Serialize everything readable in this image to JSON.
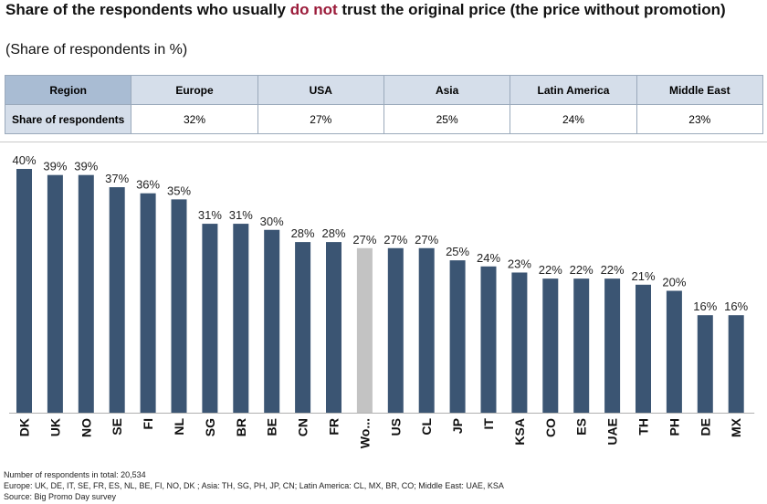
{
  "title": {
    "before": "Share of the respondents who usually ",
    "highlight": "do not",
    "after": " trust the original price (the price without promotion)"
  },
  "subtitle": "(Share of respondents in %)",
  "summary_table": {
    "header_label": "Region",
    "row_label": "Share of respondents",
    "columns": [
      {
        "region": "Europe",
        "value": "32%"
      },
      {
        "region": "USA",
        "value": "27%"
      },
      {
        "region": "Asia",
        "value": "25%"
      },
      {
        "region": "Latin America",
        "value": "24%"
      },
      {
        "region": "Middle East",
        "value": "23%"
      }
    ]
  },
  "chart_data": {
    "type": "bar",
    "categories": [
      "DK",
      "UK",
      "NO",
      "SE",
      "FI",
      "NL",
      "SG",
      "BR",
      "BE",
      "CN",
      "FR",
      "Wo...",
      "US",
      "CL",
      "JP",
      "IT",
      "KSA",
      "CO",
      "ES",
      "UAE",
      "TH",
      "PH",
      "DE",
      "MX"
    ],
    "values": [
      40,
      39,
      39,
      37,
      36,
      35,
      31,
      31,
      30,
      28,
      28,
      27,
      27,
      27,
      25,
      24,
      23,
      22,
      22,
      22,
      21,
      20,
      16,
      16
    ],
    "data_labels": [
      "40%",
      "39%",
      "39%",
      "37%",
      "36%",
      "35%",
      "31%",
      "31%",
      "30%",
      "28%",
      "28%",
      "27%",
      "27%",
      "27%",
      "25%",
      "24%",
      "23%",
      "22%",
      "22%",
      "22%",
      "21%",
      "20%",
      "16%",
      "16%"
    ],
    "highlight_index": 11,
    "colors": {
      "bar": "#3b5573",
      "highlight": "#c3c3c3"
    },
    "ylim": [
      0,
      40
    ],
    "grid": false,
    "title": "",
    "xlabel": "",
    "ylabel": ""
  },
  "footer": {
    "line1": "Number of respondents in total: 20,534",
    "line2": "Europe: UK, DE, IT, SE, FR, ES, NL, BE, FI, NO, DK ; Asia: TH, SG, PH, JP, CN; Latin America: CL, MX, BR, CO; Middle East: UAE, KSA",
    "line3": "Source: Big Promo Day survey"
  }
}
